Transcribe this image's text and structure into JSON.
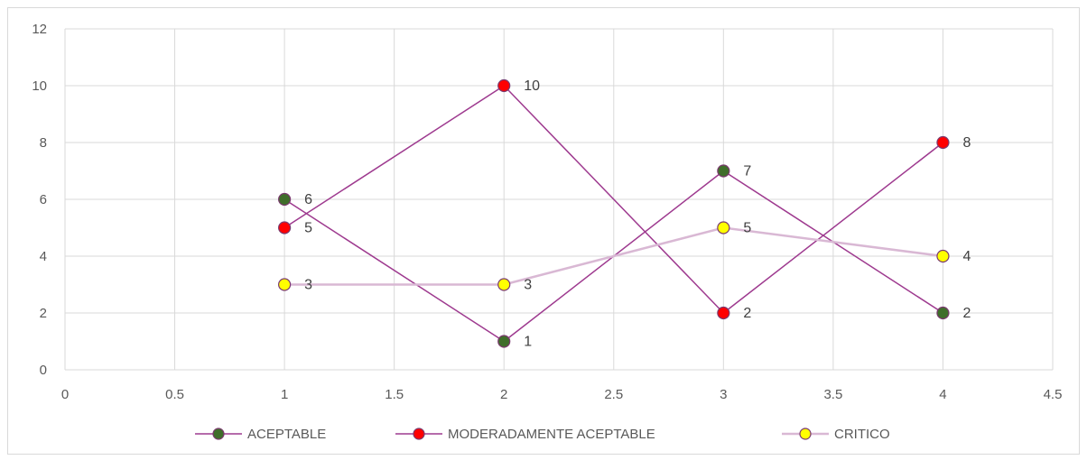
{
  "chart_data": {
    "type": "scatter",
    "xlim": [
      0,
      4.5
    ],
    "ylim": [
      0,
      12
    ],
    "x_ticks": [
      "0",
      "0.5",
      "1",
      "1.5",
      "2",
      "2.5",
      "3",
      "3.5",
      "4",
      "4.5"
    ],
    "y_ticks": [
      "0",
      "2",
      "4",
      "6",
      "8",
      "10",
      "12"
    ],
    "grid": true,
    "legend_position": "bottom",
    "series": [
      {
        "name": "ACEPTABLE",
        "line_color": "#9e3a8f",
        "marker_color": "#3f6e2a",
        "points": [
          {
            "x": 1,
            "y": 6
          },
          {
            "x": 2,
            "y": 1
          },
          {
            "x": 3,
            "y": 7
          },
          {
            "x": 4,
            "y": 2
          }
        ],
        "labels": [
          "6",
          "1",
          "7",
          "2"
        ]
      },
      {
        "name": "MODERADAMENTE ACEPTABLE",
        "line_color": "#9e3a8f",
        "marker_color": "#ff0000",
        "points": [
          {
            "x": 1,
            "y": 5
          },
          {
            "x": 2,
            "y": 10
          },
          {
            "x": 3,
            "y": 2
          },
          {
            "x": 4,
            "y": 8
          }
        ],
        "labels": [
          "5",
          "10",
          "2",
          "8"
        ]
      },
      {
        "name": "CRITICO",
        "line_color": "#d9b8d4",
        "marker_color": "#ffff00",
        "points": [
          {
            "x": 1,
            "y": 3
          },
          {
            "x": 2,
            "y": 3
          },
          {
            "x": 3,
            "y": 5
          },
          {
            "x": 4,
            "y": 4
          }
        ],
        "labels": [
          "3",
          "3",
          "5",
          "4"
        ]
      }
    ]
  }
}
